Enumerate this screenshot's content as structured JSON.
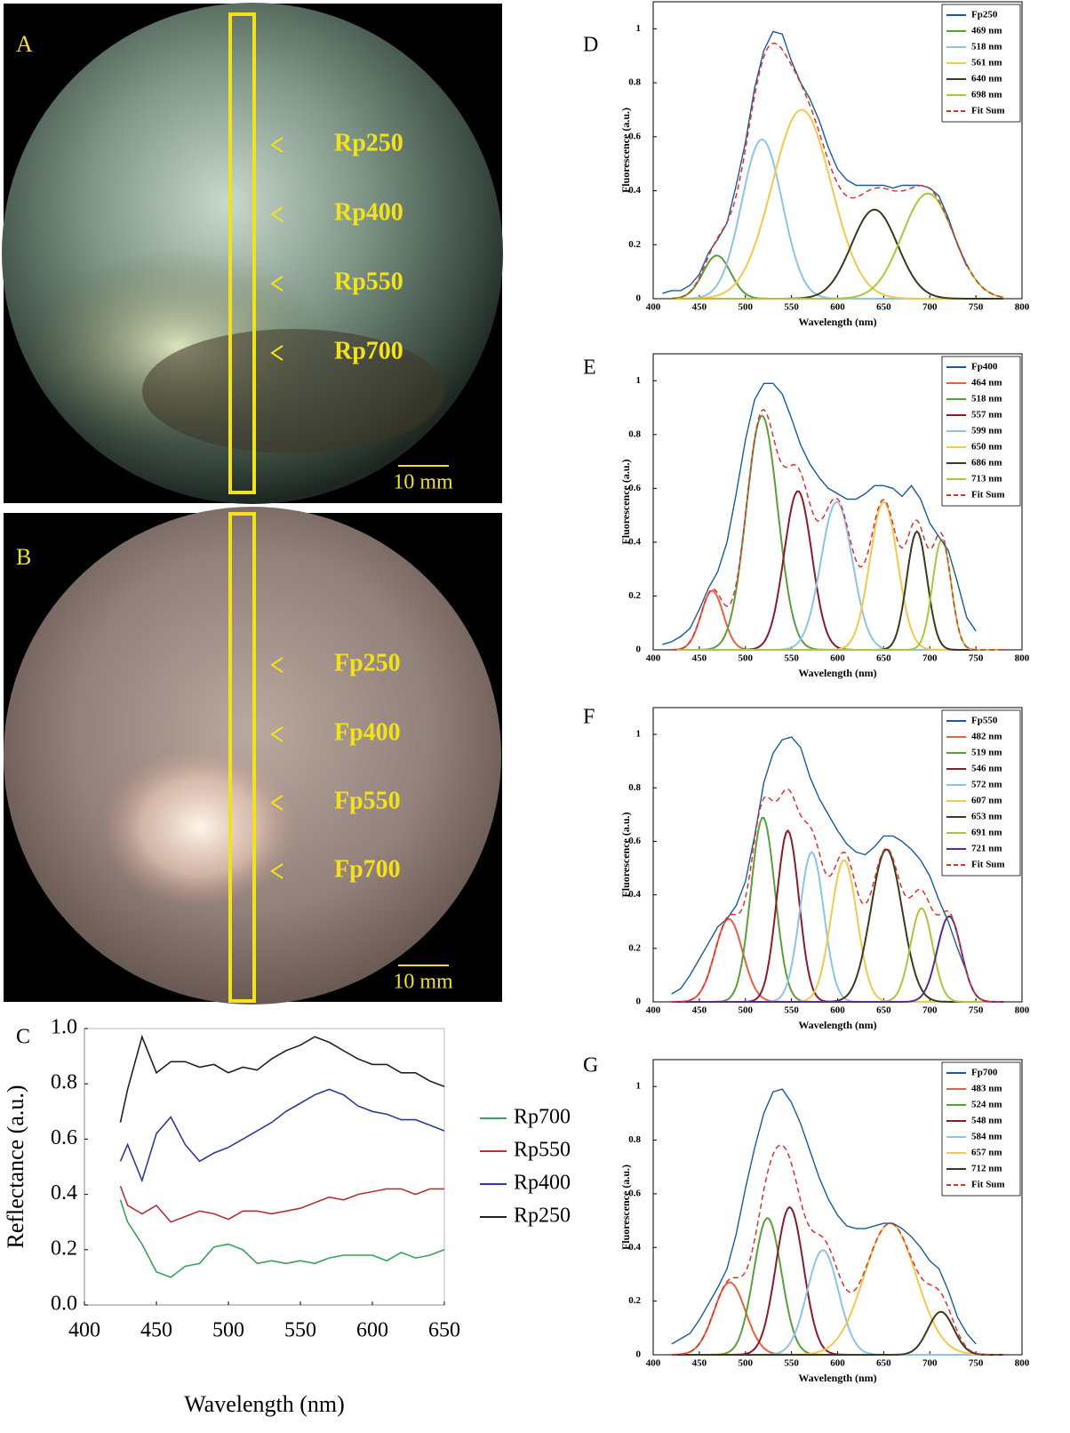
{
  "photos": [
    {
      "label": "A",
      "markers": [
        "Rp250",
        "Rp400",
        "Rp550",
        "Rp700"
      ],
      "scale": "10 mm"
    },
    {
      "label": "B",
      "markers": [
        "Fp250",
        "Fp400",
        "Fp550",
        "Fp700"
      ],
      "scale": "10 mm"
    }
  ],
  "chart_data": [
    {
      "type": "line",
      "panel": "C",
      "xlabel": "Wavelength (nm)",
      "ylabel": "Reflectance (a.u.)",
      "x": [
        425,
        430,
        440,
        450,
        460,
        470,
        480,
        490,
        500,
        510,
        520,
        530,
        540,
        550,
        560,
        570,
        580,
        590,
        600,
        610,
        620,
        630,
        640,
        650
      ],
      "series": [
        {
          "name": "Rp250",
          "color": "#222222",
          "values": [
            0.66,
            0.78,
            0.97,
            0.84,
            0.88,
            0.88,
            0.86,
            0.87,
            0.84,
            0.86,
            0.85,
            0.89,
            0.92,
            0.94,
            0.97,
            0.95,
            0.92,
            0.89,
            0.87,
            0.87,
            0.84,
            0.84,
            0.81,
            0.79
          ]
        },
        {
          "name": "Rp400",
          "color": "#2f3a9a",
          "values": [
            0.52,
            0.58,
            0.45,
            0.62,
            0.68,
            0.58,
            0.52,
            0.55,
            0.57,
            0.6,
            0.63,
            0.66,
            0.7,
            0.73,
            0.76,
            0.78,
            0.76,
            0.72,
            0.7,
            0.69,
            0.67,
            0.67,
            0.65,
            0.63
          ]
        },
        {
          "name": "Rp550",
          "color": "#b83232",
          "values": [
            0.43,
            0.36,
            0.33,
            0.36,
            0.3,
            0.32,
            0.34,
            0.33,
            0.31,
            0.34,
            0.34,
            0.33,
            0.34,
            0.35,
            0.37,
            0.39,
            0.38,
            0.4,
            0.41,
            0.42,
            0.42,
            0.4,
            0.42,
            0.42
          ]
        },
        {
          "name": "Rp700",
          "color": "#3aa05a",
          "values": [
            0.38,
            0.3,
            0.22,
            0.12,
            0.1,
            0.14,
            0.15,
            0.21,
            0.22,
            0.2,
            0.15,
            0.16,
            0.15,
            0.16,
            0.15,
            0.17,
            0.18,
            0.18,
            0.18,
            0.16,
            0.19,
            0.17,
            0.18,
            0.2
          ]
        }
      ],
      "xlim": [
        400,
        650
      ],
      "xticks": [
        400,
        450,
        500,
        550,
        600,
        650
      ],
      "ylim": [
        0,
        1
      ],
      "yticks": [
        {
          "value": 0,
          "label": "0.0"
        },
        {
          "value": 0.2,
          "label": "0.2"
        },
        {
          "value": 0.4,
          "label": "0.4"
        },
        {
          "value": 0.6,
          "label": "0.6"
        },
        {
          "value": 0.8,
          "label": "0.8"
        },
        {
          "value": 1,
          "label": "1.0"
        }
      ],
      "legend": "outside right"
    },
    {
      "type": "line",
      "panel": "D",
      "xlabel": "Wavelength (nm)",
      "ylabel": "Fluorescence (a.u.)",
      "x": [
        410,
        420,
        430,
        440,
        450,
        460,
        470,
        480,
        490,
        500,
        510,
        520,
        530,
        540,
        550,
        560,
        570,
        580,
        590,
        600,
        610,
        620,
        630,
        640,
        650,
        660,
        670,
        680,
        690,
        700,
        710,
        720,
        730,
        740
      ],
      "series": [
        {
          "name": "Fp250",
          "color": "#1a5a9a",
          "values": [
            0.02,
            0.03,
            0.03,
            0.05,
            0.09,
            0.17,
            0.22,
            0.28,
            0.42,
            0.58,
            0.78,
            0.92,
            0.99,
            0.98,
            0.88,
            0.8,
            0.74,
            0.66,
            0.56,
            0.48,
            0.44,
            0.42,
            0.42,
            0.42,
            0.42,
            0.41,
            0.42,
            0.42,
            0.42,
            0.41,
            0.38,
            0.3,
            0.2,
            0.12
          ]
        }
      ],
      "peaks": [
        {
          "name": "469 nm",
          "color": "#5c9e3a",
          "center": 469,
          "amplitude": 0.16,
          "sigma": 15
        },
        {
          "name": "518 nm",
          "color": "#8fc3e6",
          "center": 518,
          "amplitude": 0.59,
          "sigma": 22
        },
        {
          "name": "561 nm",
          "color": "#f2c94c",
          "center": 561,
          "amplitude": 0.7,
          "sigma": 32
        },
        {
          "name": "640 nm",
          "color": "#3b3a1e",
          "center": 640,
          "amplitude": 0.33,
          "sigma": 25
        },
        {
          "name": "698 nm",
          "color": "#a6c83a",
          "center": 698,
          "amplitude": 0.39,
          "sigma": 28
        }
      ],
      "fit": {
        "name": "Fit Sum",
        "color": "#e0312f"
      },
      "xlim": [
        400,
        800
      ],
      "xticks": [
        400,
        450,
        500,
        550,
        600,
        650,
        700,
        750,
        800
      ],
      "ylim": [
        0,
        1.1
      ],
      "yticks": [
        0,
        0.2,
        0.4,
        0.6,
        0.8,
        1
      ],
      "legend": "upper right"
    },
    {
      "type": "line",
      "panel": "E",
      "xlabel": "Wavelength (nm)",
      "ylabel": "Fluorescence (a.u.)",
      "x": [
        410,
        420,
        430,
        440,
        450,
        460,
        470,
        480,
        490,
        500,
        510,
        520,
        530,
        540,
        550,
        560,
        570,
        580,
        590,
        600,
        610,
        620,
        630,
        640,
        650,
        660,
        670,
        680,
        690,
        700,
        710,
        720,
        730,
        740,
        750
      ],
      "series": [
        {
          "name": "Fp400",
          "color": "#1a5a9a",
          "values": [
            0.02,
            0.03,
            0.05,
            0.08,
            0.15,
            0.23,
            0.29,
            0.4,
            0.58,
            0.78,
            0.93,
            0.99,
            0.99,
            0.95,
            0.86,
            0.76,
            0.69,
            0.64,
            0.6,
            0.58,
            0.56,
            0.56,
            0.58,
            0.61,
            0.61,
            0.6,
            0.57,
            0.61,
            0.56,
            0.47,
            0.42,
            0.37,
            0.25,
            0.12,
            0.07
          ]
        }
      ],
      "peaks": [
        {
          "name": "464 nm",
          "color": "#e8603c",
          "center": 464,
          "amplitude": 0.22,
          "sigma": 12
        },
        {
          "name": "518 nm",
          "color": "#5c9e3a",
          "center": 518,
          "amplitude": 0.87,
          "sigma": 17
        },
        {
          "name": "557 nm",
          "color": "#8b1a2b",
          "center": 557,
          "amplitude": 0.59,
          "sigma": 15
        },
        {
          "name": "599 nm",
          "color": "#8fc3e6",
          "center": 599,
          "amplitude": 0.55,
          "sigma": 17
        },
        {
          "name": "650 nm",
          "color": "#f2c94c",
          "center": 650,
          "amplitude": 0.55,
          "sigma": 15
        },
        {
          "name": "686 nm",
          "color": "#3b3a1e",
          "center": 686,
          "amplitude": 0.44,
          "sigma": 11
        },
        {
          "name": "713 nm",
          "color": "#a6c83a",
          "center": 713,
          "amplitude": 0.41,
          "sigma": 10
        }
      ],
      "fit": {
        "name": "Fit Sum",
        "color": "#e0312f"
      },
      "xlim": [
        400,
        800
      ],
      "xticks": [
        400,
        450,
        500,
        550,
        600,
        650,
        700,
        750,
        800
      ],
      "ylim": [
        0,
        1.1
      ],
      "yticks": [
        0,
        0.2,
        0.4,
        0.6,
        0.8,
        1
      ],
      "legend": "upper right"
    },
    {
      "type": "line",
      "panel": "F",
      "xlabel": "Wavelength (nm)",
      "ylabel": "Fluorescence (a.u.)",
      "x": [
        420,
        430,
        440,
        450,
        460,
        470,
        480,
        490,
        500,
        510,
        520,
        530,
        540,
        550,
        560,
        570,
        580,
        590,
        600,
        610,
        620,
        630,
        640,
        650,
        660,
        670,
        680,
        690,
        700,
        710,
        720,
        730,
        740
      ],
      "series": [
        {
          "name": "Fp550",
          "color": "#1a5a9a",
          "values": [
            0.03,
            0.05,
            0.1,
            0.16,
            0.22,
            0.28,
            0.31,
            0.36,
            0.45,
            0.62,
            0.82,
            0.93,
            0.98,
            0.99,
            0.95,
            0.84,
            0.76,
            0.7,
            0.64,
            0.59,
            0.56,
            0.55,
            0.58,
            0.62,
            0.62,
            0.6,
            0.57,
            0.53,
            0.47,
            0.38,
            0.3,
            0.2,
            0.11
          ]
        }
      ],
      "peaks": [
        {
          "name": "482 nm",
          "color": "#e8603c",
          "center": 482,
          "amplitude": 0.31,
          "sigma": 15
        },
        {
          "name": "519 nm",
          "color": "#5c9e3a",
          "center": 519,
          "amplitude": 0.69,
          "sigma": 13
        },
        {
          "name": "546 nm",
          "color": "#8b1a2b",
          "center": 546,
          "amplitude": 0.64,
          "sigma": 12
        },
        {
          "name": "572 nm",
          "color": "#8fc3e6",
          "center": 572,
          "amplitude": 0.56,
          "sigma": 13
        },
        {
          "name": "607 nm",
          "color": "#f2c94c",
          "center": 607,
          "amplitude": 0.53,
          "sigma": 14
        },
        {
          "name": "653 nm",
          "color": "#3b3a1e",
          "center": 653,
          "amplitude": 0.57,
          "sigma": 17
        },
        {
          "name": "691 nm",
          "color": "#a6c83a",
          "center": 691,
          "amplitude": 0.35,
          "sigma": 12
        },
        {
          "name": "721 nm",
          "color": "#5b2d82",
          "center": 721,
          "amplitude": 0.32,
          "sigma": 13
        }
      ],
      "fit": {
        "name": "Fit Sum",
        "color": "#e0312f"
      },
      "xlim": [
        400,
        800
      ],
      "xticks": [
        400,
        450,
        500,
        550,
        600,
        650,
        700,
        750,
        800
      ],
      "ylim": [
        0,
        1.1
      ],
      "yticks": [
        0,
        0.2,
        0.4,
        0.6,
        0.8,
        1
      ],
      "legend": "upper right"
    },
    {
      "type": "line",
      "panel": "G",
      "xlabel": "Wavelength (nm)",
      "ylabel": "Fluorescence (a.u.)",
      "x": [
        420,
        430,
        440,
        450,
        460,
        470,
        480,
        490,
        500,
        510,
        520,
        530,
        540,
        550,
        560,
        570,
        580,
        590,
        600,
        610,
        620,
        630,
        640,
        650,
        660,
        670,
        680,
        690,
        700,
        710,
        720,
        730,
        740,
        750
      ],
      "series": [
        {
          "name": "Fp700",
          "color": "#1a5a9a",
          "values": [
            0.04,
            0.06,
            0.08,
            0.13,
            0.19,
            0.25,
            0.32,
            0.45,
            0.62,
            0.77,
            0.9,
            0.98,
            0.99,
            0.94,
            0.86,
            0.76,
            0.66,
            0.58,
            0.52,
            0.48,
            0.47,
            0.47,
            0.48,
            0.49,
            0.49,
            0.47,
            0.44,
            0.4,
            0.35,
            0.32,
            0.24,
            0.14,
            0.08,
            0.04
          ]
        }
      ],
      "peaks": [
        {
          "name": "483 nm",
          "color": "#e8603c",
          "center": 483,
          "amplitude": 0.27,
          "sigma": 17
        },
        {
          "name": "524 nm",
          "color": "#5c9e3a",
          "center": 524,
          "amplitude": 0.51,
          "sigma": 15
        },
        {
          "name": "548 nm",
          "color": "#8b1a2b",
          "center": 548,
          "amplitude": 0.55,
          "sigma": 15
        },
        {
          "name": "584 nm",
          "color": "#8fc3e6",
          "center": 584,
          "amplitude": 0.39,
          "sigma": 17
        },
        {
          "name": "657 nm",
          "color": "#f2c94c",
          "center": 657,
          "amplitude": 0.49,
          "sigma": 28
        },
        {
          "name": "712 nm",
          "color": "#3b3a1e",
          "center": 712,
          "amplitude": 0.16,
          "sigma": 14
        }
      ],
      "fit": {
        "name": "Fit Sum",
        "color": "#e0312f"
      },
      "xlim": [
        400,
        800
      ],
      "xticks": [
        400,
        450,
        500,
        550,
        600,
        650,
        700,
        750,
        800
      ],
      "ylim": [
        0,
        1.1
      ],
      "yticks": [
        0,
        0.2,
        0.4,
        0.6,
        0.8,
        1
      ],
      "legend": "upper right"
    }
  ]
}
